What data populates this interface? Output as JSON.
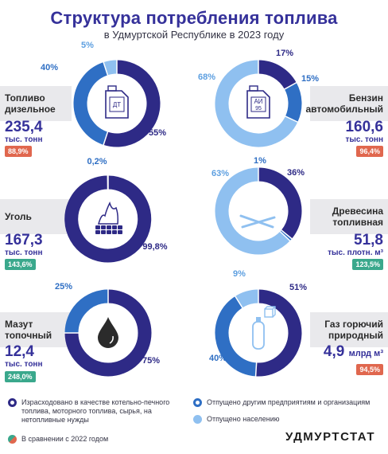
{
  "header": {
    "title": "Структура потребления топлива",
    "subtitle": "в Удмуртской Республике в 2023 году"
  },
  "colors": {
    "dark": "#2e2a86",
    "mid": "#2f6fc4",
    "light": "#8fc0f0",
    "up_badge": "#3aa88c",
    "down_badge": "#e0674e"
  },
  "chart_data": [
    {
      "type": "pie",
      "id": "diesel",
      "name_line1": "Топливо",
      "name_line2": "дизельное",
      "value": "235,4",
      "unit": "тыс. тонн",
      "comparison": "88,9%",
      "trend": "down",
      "icon": "canister-dt-icon",
      "icon_label_1": "ДТ",
      "icon_label_2": "",
      "slices": [
        {
          "category": "dark",
          "value": 55,
          "label": "55%"
        },
        {
          "category": "mid",
          "value": 40,
          "label": "40%"
        },
        {
          "category": "light",
          "value": 5,
          "label": "5%"
        }
      ]
    },
    {
      "type": "pie",
      "id": "gasoline",
      "name_line1": "Бензин",
      "name_line2": "автомобильный",
      "value": "160,6",
      "unit": "тыс. тонн",
      "comparison": "96,4%",
      "trend": "down",
      "icon": "canister-ai95-icon",
      "icon_label_1": "АИ",
      "icon_label_2": "95",
      "slices": [
        {
          "category": "dark",
          "value": 17,
          "label": "17%"
        },
        {
          "category": "mid",
          "value": 15,
          "label": "15%"
        },
        {
          "category": "light",
          "value": 68,
          "label": "68%"
        }
      ]
    },
    {
      "type": "pie",
      "id": "coal",
      "name_line1": "Уголь",
      "name_line2": "",
      "value": "167,3",
      "unit": "тыс. тонн",
      "comparison": "143,6%",
      "trend": "up",
      "icon": "coal-bag-icon",
      "slices": [
        {
          "category": "dark",
          "value": 99.8,
          "label": "99,8%"
        },
        {
          "category": "mid",
          "value": 0.2,
          "label": "0,2%"
        }
      ]
    },
    {
      "type": "pie",
      "id": "wood",
      "name_line1": "Древесина",
      "name_line2": "топливная",
      "value": "51,8",
      "unit": "тыс. плотн. м³",
      "comparison": "123,5%",
      "trend": "up",
      "icon": "firewood-icon",
      "slices": [
        {
          "category": "dark",
          "value": 36,
          "label": "36%"
        },
        {
          "category": "mid",
          "value": 1,
          "label": "1%"
        },
        {
          "category": "light",
          "value": 63,
          "label": "63%"
        }
      ]
    },
    {
      "type": "pie",
      "id": "fueloil",
      "name_line1": "Мазут",
      "name_line2": "топочный",
      "value": "12,4",
      "unit": "тыс. тонн",
      "comparison": "248,0%",
      "trend": "up",
      "icon": "oil-drop-icon",
      "slices": [
        {
          "category": "dark",
          "value": 75,
          "label": "75%"
        },
        {
          "category": "mid",
          "value": 25,
          "label": "25%"
        }
      ]
    },
    {
      "type": "pie",
      "id": "gas",
      "name_line1": "Газ горючий",
      "name_line2": "природный",
      "value": "4,9",
      "unit": "млрд м³",
      "comparison": "94,5%",
      "trend": "down",
      "icon": "gas-cylinder-icon",
      "slices": [
        {
          "category": "dark",
          "value": 51,
          "label": "51%"
        },
        {
          "category": "mid",
          "value": 40,
          "label": "40%"
        },
        {
          "category": "light",
          "value": 9,
          "label": "9%"
        }
      ]
    }
  ],
  "legend": {
    "dark": "Израсходовано в качестве котельно-печного топлива, моторного топлива, сырья, на нетопливные нужды",
    "mid": "Отпущено другим предприятиям и организациям",
    "light": "Отпущено населению",
    "comparison": "В сравнении с 2022 годом"
  },
  "brand": "УДМУРТСТАТ"
}
